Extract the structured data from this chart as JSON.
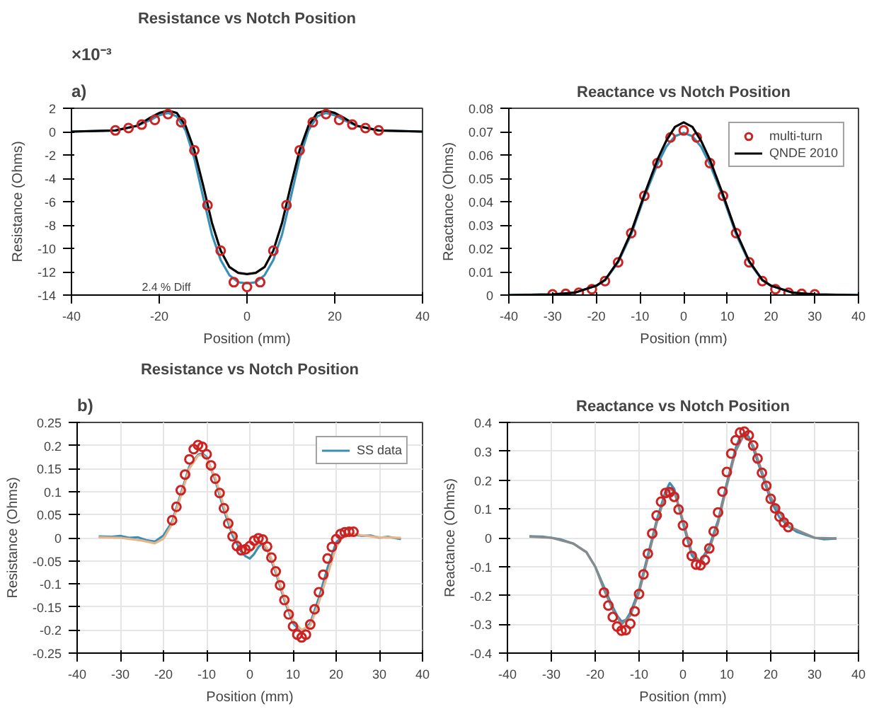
{
  "chart_data": [
    {
      "type": "line",
      "title": "Resistance vs Notch Position",
      "xlabel": "Position (mm)",
      "ylabel": "Resistance (Ohms)",
      "annotations": [
        "a)",
        "×10⁻³",
        "2.4 % Diff"
      ],
      "xlim": [
        -40,
        40
      ],
      "xticks": [
        -40,
        -20,
        0,
        20,
        40
      ],
      "ylim": [
        -14,
        2
      ],
      "yticks": [
        -14,
        -12,
        -10,
        -8,
        -6,
        -4,
        -2,
        0,
        2
      ],
      "grid": false,
      "legend": false,
      "series": [
        {
          "color": "#3a8fb7",
          "x": [
            -40,
            -30,
            -25,
            -22,
            -20,
            -18,
            -16,
            -14,
            -12,
            -10,
            -8,
            -6,
            -4,
            -2,
            0,
            2,
            4,
            6,
            8,
            10,
            12,
            14,
            16,
            18,
            20,
            22,
            25,
            30,
            40
          ],
          "values": [
            0,
            0.1,
            0.5,
            1.0,
            1.4,
            1.6,
            1.3,
            0.1,
            -2.3,
            -5.6,
            -8.8,
            -11.0,
            -12.3,
            -12.9,
            -13.0,
            -12.9,
            -12.3,
            -11.0,
            -8.8,
            -5.6,
            -2.3,
            0.1,
            1.3,
            1.6,
            1.4,
            1.0,
            0.5,
            0.1,
            0
          ]
        },
        {
          "color": "#000000",
          "x": [
            -40,
            -30,
            -25,
            -22,
            -20,
            -18,
            -16,
            -14,
            -12,
            -10,
            -8,
            -6,
            -4,
            -2,
            0,
            2,
            4,
            6,
            8,
            10,
            12,
            14,
            16,
            18,
            20,
            22,
            25,
            30,
            40
          ],
          "values": [
            0,
            0.1,
            0.5,
            1.2,
            1.6,
            1.8,
            1.6,
            0.5,
            -1.6,
            -4.6,
            -7.8,
            -10.2,
            -11.6,
            -12.1,
            -12.2,
            -12.1,
            -11.6,
            -10.2,
            -7.8,
            -4.6,
            -1.6,
            0.5,
            1.6,
            1.8,
            1.6,
            1.2,
            0.5,
            0.1,
            0
          ]
        },
        {
          "type": "scatter",
          "marker": "circle",
          "color": "#cc2222",
          "x": [
            -30,
            -27,
            -24,
            -21,
            -18,
            -15,
            -12,
            -9,
            -6,
            -3,
            0,
            3,
            6,
            9,
            12,
            15,
            18,
            21,
            24,
            27,
            30
          ],
          "values": [
            0.1,
            0.3,
            0.6,
            1.0,
            1.5,
            0.8,
            -1.6,
            -6.3,
            -10.2,
            -12.9,
            -13.3,
            -12.9,
            -10.2,
            -6.3,
            -1.6,
            0.8,
            1.5,
            1.0,
            0.6,
            0.3,
            0.1
          ]
        }
      ]
    },
    {
      "type": "line",
      "title": "Reactance vs Notch Position",
      "xlabel": "Position (mm)",
      "ylabel": "Reactance (Ohms)",
      "xlim": [
        -40,
        40
      ],
      "xticks": [
        -40,
        -30,
        -20,
        -10,
        0,
        10,
        20,
        30,
        40
      ],
      "ylim": [
        0,
        0.08
      ],
      "yticks": [
        0,
        0.01,
        0.02,
        0.03,
        0.04,
        0.05,
        0.06,
        0.07,
        0.08
      ],
      "grid": false,
      "legend": "top right",
      "series": [
        {
          "color": "#3a8fb7",
          "x": [
            -40,
            -30,
            -25,
            -20,
            -18,
            -15,
            -12,
            -9,
            -6,
            -4,
            -2,
            0,
            2,
            4,
            6,
            9,
            12,
            15,
            18,
            20,
            25,
            30,
            40
          ],
          "values": [
            0,
            0.0003,
            0.001,
            0.004,
            0.0063,
            0.014,
            0.026,
            0.042,
            0.056,
            0.0635,
            0.068,
            0.0695,
            0.068,
            0.0635,
            0.056,
            0.042,
            0.026,
            0.014,
            0.0063,
            0.004,
            0.001,
            0.0003,
            0
          ]
        },
        {
          "type": "scatter",
          "name": "multi-turn",
          "marker": "circle",
          "color": "#cc2222",
          "x": [
            -30,
            -27,
            -24,
            -21,
            -18,
            -15,
            -12,
            -9,
            -6,
            -3,
            0,
            3,
            6,
            9,
            12,
            15,
            18,
            21,
            24,
            27,
            30
          ],
          "values": [
            0.0003,
            0.0005,
            0.001,
            0.0025,
            0.006,
            0.014,
            0.0265,
            0.0425,
            0.0565,
            0.0675,
            0.0705,
            0.0675,
            0.0565,
            0.0425,
            0.0265,
            0.014,
            0.006,
            0.0025,
            0.001,
            0.0005,
            0.0003
          ]
        },
        {
          "name": "QNDE 2010",
          "color": "#000000",
          "x": [
            -40,
            -30,
            -25,
            -20,
            -18,
            -15,
            -12,
            -9,
            -6,
            -4,
            -2,
            0,
            2,
            4,
            6,
            9,
            12,
            15,
            18,
            20,
            25,
            30,
            40
          ],
          "values": [
            0,
            0.0003,
            0.001,
            0.004,
            0.0065,
            0.0145,
            0.027,
            0.043,
            0.058,
            0.066,
            0.072,
            0.074,
            0.072,
            0.066,
            0.058,
            0.043,
            0.027,
            0.0145,
            0.0065,
            0.004,
            0.001,
            0.0003,
            0
          ]
        }
      ]
    },
    {
      "type": "line",
      "title": "Resistance vs Notch Position",
      "xlabel": "Position (mm)",
      "ylabel": "Resistance (Ohms)",
      "annotations": [
        "b)"
      ],
      "xlim": [
        -40,
        40
      ],
      "xticks": [
        -40,
        -30,
        -20,
        -10,
        0,
        10,
        20,
        30,
        40
      ],
      "ylim": [
        -0.25,
        0.25
      ],
      "yticks": [
        -0.25,
        -0.2,
        -0.15,
        -0.1,
        -0.05,
        0,
        0.05,
        0.1,
        0.15,
        0.2,
        0.25
      ],
      "grid": true,
      "legend": "top right",
      "series": [
        {
          "name": "SS data",
          "color": "#3a8fb7",
          "x": [
            -35,
            -32,
            -30,
            -28,
            -26,
            -24,
            -22,
            -20,
            -18,
            -16,
            -14,
            -12,
            -11,
            -10,
            -8,
            -6,
            -4,
            -2,
            -1,
            0,
            1,
            2,
            3,
            4,
            6,
            8,
            10,
            12,
            14,
            16,
            18,
            20,
            22,
            24,
            26,
            28,
            30,
            32,
            35
          ],
          "values": [
            0.003,
            0.002,
            0.004,
            0.0,
            0.001,
            -0.005,
            -0.008,
            0.005,
            0.035,
            0.095,
            0.155,
            0.18,
            0.183,
            0.175,
            0.125,
            0.06,
            0.005,
            -0.03,
            -0.04,
            -0.045,
            -0.035,
            -0.02,
            -0.012,
            -0.025,
            -0.075,
            -0.135,
            -0.185,
            -0.205,
            -0.185,
            -0.13,
            -0.065,
            -0.01,
            0.008,
            0.007,
            0.004,
            0.005,
            0.0,
            0.002,
            -0.003
          ]
        },
        {
          "color": "#e8b48a",
          "x": [
            -35,
            -30,
            -25,
            -22,
            -20,
            -18,
            -16,
            -14,
            -12,
            -11,
            -10,
            -8,
            -6,
            -4,
            -2,
            -1,
            0,
            1,
            2,
            3,
            4,
            6,
            8,
            10,
            12,
            14,
            16,
            18,
            20,
            22,
            24,
            26,
            30,
            35
          ],
          "values": [
            0.001,
            0.0,
            -0.006,
            -0.012,
            -0.002,
            0.03,
            0.09,
            0.15,
            0.178,
            0.18,
            0.172,
            0.13,
            0.068,
            0.012,
            -0.02,
            -0.028,
            -0.03,
            -0.022,
            -0.012,
            -0.01,
            -0.022,
            -0.07,
            -0.13,
            -0.18,
            -0.2,
            -0.19,
            -0.14,
            -0.08,
            -0.02,
            0.008,
            0.009,
            0.005,
            0.001,
            0.0
          ]
        },
        {
          "type": "scatter",
          "marker": "circle",
          "color": "#cc2222",
          "x": [
            -18,
            -17,
            -16,
            -15,
            -14,
            -13,
            -12,
            -11,
            -10,
            -9,
            -8,
            -7,
            -6,
            -5,
            -4,
            -3,
            -2,
            -1,
            0,
            1,
            2,
            3,
            4,
            5,
            6,
            7,
            8,
            9,
            10,
            11,
            12,
            13,
            14,
            15,
            16,
            17,
            18,
            19,
            20,
            21,
            22,
            23,
            24
          ],
          "values": [
            0.038,
            0.067,
            0.103,
            0.137,
            0.17,
            0.192,
            0.201,
            0.197,
            0.181,
            0.157,
            0.128,
            0.097,
            0.064,
            0.031,
            0.003,
            -0.018,
            -0.027,
            -0.025,
            -0.018,
            -0.006,
            -0.001,
            -0.004,
            -0.019,
            -0.043,
            -0.073,
            -0.103,
            -0.135,
            -0.166,
            -0.192,
            -0.21,
            -0.216,
            -0.21,
            -0.188,
            -0.155,
            -0.118,
            -0.08,
            -0.045,
            -0.02,
            -0.003,
            0.008,
            0.012,
            0.013,
            0.013
          ]
        }
      ]
    },
    {
      "type": "line",
      "title": "Reactance vs Notch Position",
      "xlabel": "Position (mm)",
      "ylabel": "Reactance (Ohms)",
      "xlim": [
        -40,
        40
      ],
      "xticks": [
        -40,
        -30,
        -20,
        -10,
        0,
        10,
        20,
        30,
        40
      ],
      "ylim": [
        -0.4,
        0.4
      ],
      "yticks": [
        -0.4,
        -0.3,
        -0.2,
        -0.1,
        0,
        0.1,
        0.2,
        0.3,
        0.4
      ],
      "grid": true,
      "legend": false,
      "series": [
        {
          "color": "#3a8fb7",
          "x": [
            -35,
            -32,
            -30,
            -28,
            -25,
            -22,
            -20,
            -18,
            -16,
            -15,
            -14,
            -13,
            -12,
            -10,
            -8,
            -6,
            -4,
            -3,
            -2,
            0,
            2,
            3,
            4,
            6,
            8,
            10,
            12,
            13,
            14,
            15,
            16,
            18,
            20,
            22,
            24,
            26,
            28,
            30,
            32,
            35
          ],
          "values": [
            0.005,
            0.004,
            0.0,
            -0.005,
            -0.02,
            -0.05,
            -0.1,
            -0.17,
            -0.24,
            -0.27,
            -0.29,
            -0.285,
            -0.26,
            -0.18,
            -0.06,
            0.06,
            0.16,
            0.19,
            0.17,
            0.05,
            -0.06,
            -0.08,
            -0.08,
            -0.03,
            0.06,
            0.19,
            0.31,
            0.35,
            0.365,
            0.35,
            0.31,
            0.22,
            0.13,
            0.07,
            0.04,
            0.02,
            0.01,
            0.0,
            -0.005,
            -0.003
          ]
        },
        {
          "color": "#8a8a8a",
          "x": [
            -35,
            -30,
            -25,
            -22,
            -20,
            -18,
            -16,
            -14,
            -12,
            -10,
            -8,
            -6,
            -4,
            -3,
            -2,
            0,
            2,
            4,
            6,
            8,
            10,
            12,
            14,
            16,
            18,
            20,
            24,
            30,
            35
          ],
          "values": [
            0.004,
            0.0,
            -0.02,
            -0.05,
            -0.1,
            -0.18,
            -0.25,
            -0.3,
            -0.27,
            -0.19,
            -0.07,
            0.05,
            0.15,
            0.17,
            0.16,
            0.06,
            -0.05,
            -0.085,
            -0.04,
            0.05,
            0.18,
            0.3,
            0.36,
            0.32,
            0.23,
            0.14,
            0.04,
            0.0,
            -0.002
          ]
        },
        {
          "type": "scatter",
          "marker": "circle",
          "color": "#cc2222",
          "x": [
            -18,
            -17,
            -16,
            -15,
            -14,
            -13,
            -12,
            -11,
            -10,
            -9,
            -8,
            -7,
            -6,
            -5,
            -4,
            -3,
            -2,
            -1,
            0,
            1,
            2,
            3,
            4,
            5,
            6,
            7,
            8,
            9,
            10,
            11,
            12,
            13,
            14,
            15,
            16,
            17,
            18,
            19,
            20,
            21,
            22,
            23,
            24
          ],
          "values": [
            -0.19,
            -0.235,
            -0.275,
            -0.308,
            -0.322,
            -0.32,
            -0.298,
            -0.255,
            -0.195,
            -0.127,
            -0.055,
            0.015,
            0.077,
            0.125,
            0.155,
            0.158,
            0.142,
            0.098,
            0.043,
            -0.015,
            -0.063,
            -0.093,
            -0.095,
            -0.077,
            -0.037,
            0.022,
            0.088,
            0.16,
            0.228,
            0.292,
            0.338,
            0.365,
            0.368,
            0.355,
            0.32,
            0.275,
            0.225,
            0.18,
            0.135,
            0.102,
            0.073,
            0.053,
            0.037
          ]
        }
      ]
    }
  ]
}
